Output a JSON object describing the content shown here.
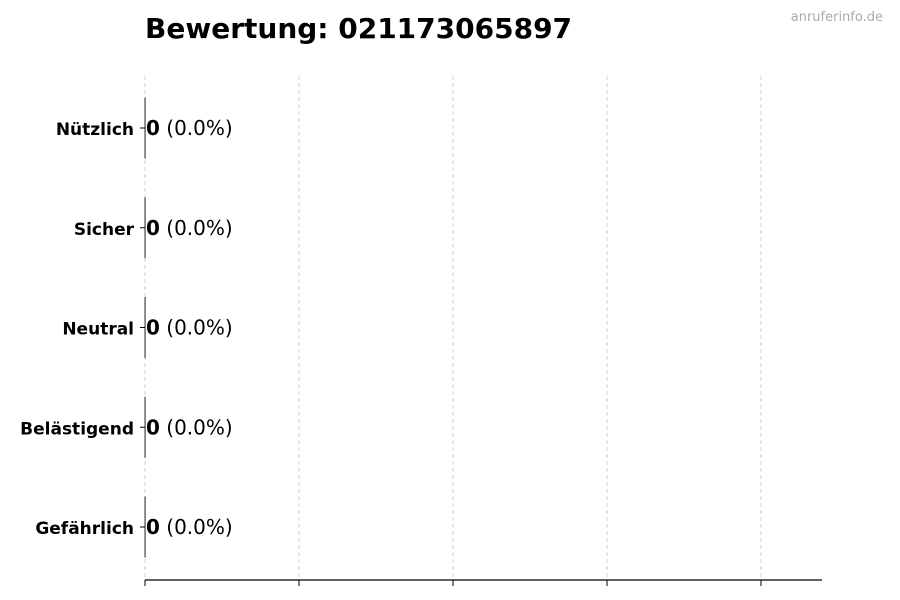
{
  "chart_data": {
    "type": "bar",
    "orientation": "horizontal",
    "title": "Bewertung: 021173065897",
    "watermark": "anruferinfo.de",
    "categories": [
      "Nützlich",
      "Sicher",
      "Neutral",
      "Belästigend",
      "Gefährlich"
    ],
    "values": [
      0,
      0,
      0,
      0,
      0
    ],
    "labels": [
      {
        "count": "0",
        "percent": "(0.0%)"
      },
      {
        "count": "0",
        "percent": "(0.0%)"
      },
      {
        "count": "0",
        "percent": "(0.0%)"
      },
      {
        "count": "0",
        "percent": "(0.0%)"
      },
      {
        "count": "0",
        "percent": "(0.0%)"
      }
    ],
    "xlabel": "",
    "ylabel": "",
    "grid": "x-dashed",
    "colors": {
      "grid": "#d0d0d0",
      "axis": "#000000",
      "bar_edge": "#333333",
      "watermark": "#aaaaaa"
    }
  }
}
